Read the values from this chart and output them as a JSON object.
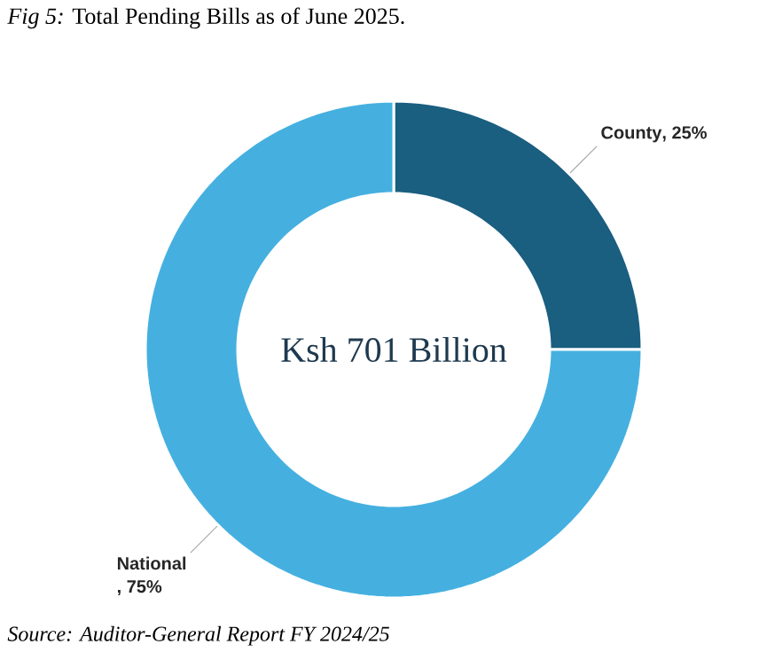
{
  "chart_data": {
    "type": "donut",
    "title": "*Fig 5:* Total Pending Bills as of June 2025.",
    "categories": [
      "County",
      "National"
    ],
    "values": [
      25,
      75
    ],
    "value_labels": [
      ", 25%",
      ", 75%"
    ],
    "colors": [
      "#1a5e80",
      "#45b0e0"
    ],
    "annotations": [
      "Ksh 701 Billion",
      "Source: Auditor-General Report FY 2024/25"
    ]
  }
}
